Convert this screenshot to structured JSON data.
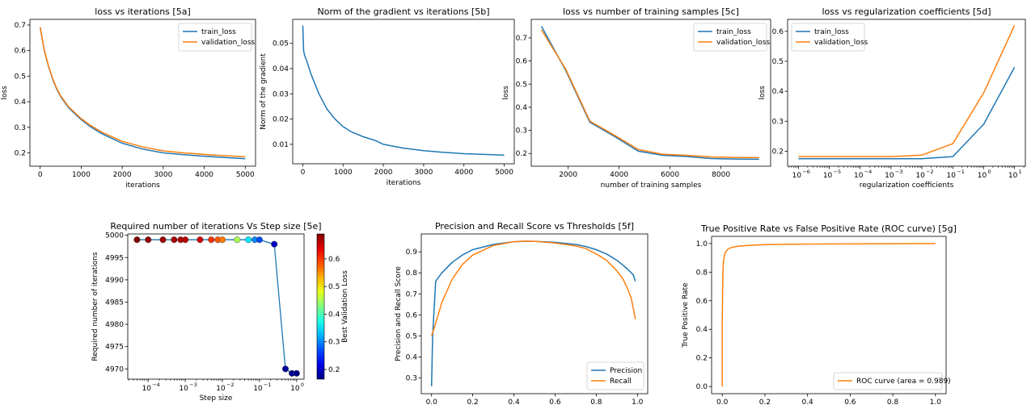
{
  "chart_data": [
    {
      "id": "5a",
      "type": "line",
      "title": "loss vs iterations [5a]",
      "xlabel": "iterations",
      "ylabel": "loss",
      "xlim": [
        -250,
        5250
      ],
      "ylim": [
        0.148,
        0.722
      ],
      "xticks": [
        0,
        1000,
        2000,
        3000,
        4000,
        5000
      ],
      "xticklabels": [
        "0",
        "1000",
        "2000",
        "3000",
        "4000",
        "5000"
      ],
      "yticks": [
        0.2,
        0.3,
        0.4,
        0.5,
        0.6,
        0.7
      ],
      "yticklabels": [
        "0.2",
        "0.3",
        "0.4",
        "0.5",
        "0.6",
        "0.7"
      ],
      "legend": "top-right",
      "series": [
        {
          "name": "train_loss",
          "color": "#1f77b4",
          "x": [
            0,
            100,
            200,
            300,
            400,
            500,
            700,
            1000,
            1200,
            1500,
            2000,
            2500,
            3000,
            3500,
            4000,
            4500,
            5000
          ],
          "y": [
            0.69,
            0.6,
            0.54,
            0.49,
            0.45,
            0.42,
            0.375,
            0.33,
            0.305,
            0.275,
            0.238,
            0.215,
            0.2,
            0.193,
            0.187,
            0.182,
            0.177
          ]
        },
        {
          "name": "validation_loss",
          "color": "#ff7f0e",
          "x": [
            0,
            100,
            200,
            300,
            400,
            500,
            700,
            1000,
            1200,
            1500,
            2000,
            2500,
            3000,
            3500,
            4000,
            4500,
            5000
          ],
          "y": [
            0.692,
            0.602,
            0.542,
            0.493,
            0.453,
            0.423,
            0.379,
            0.334,
            0.31,
            0.281,
            0.245,
            0.223,
            0.208,
            0.2,
            0.194,
            0.189,
            0.185
          ]
        }
      ]
    },
    {
      "id": "5b",
      "type": "line",
      "title": "Norm of the gradient vs iterations [5b]",
      "xlabel": "iterations",
      "ylabel": "Norm of the gradient",
      "xlim": [
        -250,
        5250
      ],
      "ylim": [
        0.0023,
        0.0595
      ],
      "xticks": [
        0,
        1000,
        2000,
        3000,
        4000,
        5000
      ],
      "xticklabels": [
        "0",
        "1000",
        "2000",
        "3000",
        "4000",
        "5000"
      ],
      "yticks": [
        0.01,
        0.02,
        0.03,
        0.04,
        0.05
      ],
      "yticklabels": [
        "0.01",
        "0.02",
        "0.03",
        "0.04",
        "0.05"
      ],
      "series": [
        {
          "color": "#1f77b4",
          "x": [
            0,
            20,
            50,
            100,
            200,
            300,
            400,
            500,
            600,
            800,
            1000,
            1200,
            1500,
            1800,
            2000,
            2500,
            3000,
            3500,
            4000,
            4500,
            5000
          ],
          "y": [
            0.057,
            0.047,
            0.045,
            0.043,
            0.038,
            0.034,
            0.03,
            0.027,
            0.024,
            0.02,
            0.017,
            0.015,
            0.013,
            0.0115,
            0.01,
            0.0085,
            0.0075,
            0.0068,
            0.0063,
            0.006,
            0.0057
          ]
        }
      ]
    },
    {
      "id": "5c",
      "type": "line",
      "title": "loss vs number of training samples [5c]",
      "xlabel": "number of training samples",
      "ylabel": "loss",
      "xlim": [
        550,
        9950
      ],
      "ylim": [
        0.145,
        0.78
      ],
      "xticks": [
        2000,
        4000,
        6000,
        8000
      ],
      "xticklabels": [
        "2000",
        "4000",
        "6000",
        "8000"
      ],
      "yticks": [
        0.2,
        0.3,
        0.4,
        0.5,
        0.6,
        0.7
      ],
      "yticklabels": [
        "0.2",
        "0.3",
        "0.4",
        "0.5",
        "0.6",
        "0.7"
      ],
      "legend": "top-right",
      "series": [
        {
          "name": "train_loss",
          "color": "#1f77b4",
          "x": [
            950,
            1900,
            2850,
            3800,
            4750,
            5700,
            6650,
            7600,
            8550,
            9500
          ],
          "y": [
            0.75,
            0.56,
            0.335,
            0.275,
            0.21,
            0.192,
            0.187,
            0.178,
            0.176,
            0.175
          ]
        },
        {
          "name": "validation_loss",
          "color": "#ff7f0e",
          "x": [
            950,
            1900,
            2850,
            3800,
            4750,
            5700,
            6650,
            7600,
            8550,
            9500
          ],
          "y": [
            0.735,
            0.565,
            0.34,
            0.28,
            0.217,
            0.197,
            0.192,
            0.185,
            0.183,
            0.182
          ]
        }
      ]
    },
    {
      "id": "5d",
      "type": "line",
      "title": "loss vs regularization coefficients [5d]",
      "xlabel": "regularization coefficients",
      "ylabel": "loss",
      "xscale": "log",
      "xlim_exp": [
        -6.35,
        1.35
      ],
      "ylim": [
        0.15,
        0.64
      ],
      "xticks_exp": [
        -6,
        -5,
        -4,
        -3,
        -2,
        -1,
        0,
        1
      ],
      "xticklabels": [
        "10",
        "10",
        "10",
        "10",
        "10",
        "10",
        "10",
        "10"
      ],
      "xtick_exponents": [
        "−6",
        "−5",
        "−4",
        "−3",
        "−2",
        "−1",
        "0",
        "1"
      ],
      "yticks": [
        0.2,
        0.3,
        0.4,
        0.5,
        0.6
      ],
      "yticklabels": [
        "0.2",
        "0.3",
        "0.4",
        "0.5",
        "0.6"
      ],
      "legend": "top-left",
      "series": [
        {
          "name": "train_loss",
          "color": "#1f77b4",
          "x": [
            1e-06,
            1e-05,
            0.0001,
            0.001,
            0.01,
            0.1,
            1,
            10
          ],
          "y": [
            0.175,
            0.175,
            0.175,
            0.175,
            0.175,
            0.182,
            0.29,
            0.48
          ]
        },
        {
          "name": "validation_loss",
          "color": "#ff7f0e",
          "x": [
            1e-06,
            1e-05,
            0.0001,
            0.001,
            0.01,
            0.1,
            1,
            10
          ],
          "y": [
            0.182,
            0.182,
            0.182,
            0.182,
            0.187,
            0.225,
            0.395,
            0.62
          ]
        }
      ]
    },
    {
      "id": "5e",
      "type": "scatter",
      "title": "Required number of iterations Vs Step size [5e]",
      "xlabel": "Step size",
      "ylabel": "Required number of iterations",
      "xscale": "log",
      "xlim_exp": [
        -4.55,
        0.2
      ],
      "ylim": [
        4967.7,
        5000.3
      ],
      "xticks_exp": [
        -4,
        -3,
        -2,
        -1,
        0
      ],
      "xticklabels": [
        "10",
        "10",
        "10",
        "10",
        "10"
      ],
      "xtick_exponents": [
        "−4",
        "−3",
        "−2",
        "−1",
        "0"
      ],
      "yticks": [
        4970,
        4975,
        4980,
        4985,
        4990,
        4995,
        5000
      ],
      "yticklabels": [
        "4970",
        "4975",
        "4980",
        "4985",
        "4990",
        "4995",
        "5000"
      ],
      "line_color": "#1f77b4",
      "colorbar": {
        "label": "Best Validation Loss",
        "range": [
          0.165,
          0.69
        ],
        "ticks": [
          0.2,
          0.3,
          0.4,
          0.5,
          0.6
        ],
        "ticklabels": [
          "0.2",
          "0.3",
          "0.4",
          "0.5",
          "0.6"
        ]
      },
      "points": [
        {
          "x": 5e-05,
          "y": 4999,
          "c": 0.69
        },
        {
          "x": 0.0001,
          "y": 4999,
          "c": 0.68
        },
        {
          "x": 0.00025,
          "y": 4999,
          "c": 0.675
        },
        {
          "x": 0.0005,
          "y": 4999,
          "c": 0.67
        },
        {
          "x": 0.00075,
          "y": 4999,
          "c": 0.665
        },
        {
          "x": 0.001,
          "y": 4999,
          "c": 0.66
        },
        {
          "x": 0.0025,
          "y": 4999,
          "c": 0.65
        },
        {
          "x": 0.005,
          "y": 4999,
          "c": 0.6
        },
        {
          "x": 0.0075,
          "y": 4999,
          "c": 0.58
        },
        {
          "x": 0.01,
          "y": 4999,
          "c": 0.56
        },
        {
          "x": 0.025,
          "y": 4999,
          "c": 0.45
        },
        {
          "x": 0.05,
          "y": 4999,
          "c": 0.35
        },
        {
          "x": 0.075,
          "y": 4999,
          "c": 0.3
        },
        {
          "x": 0.1,
          "y": 4999,
          "c": 0.27
        },
        {
          "x": 0.25,
          "y": 4998,
          "c": 0.2
        },
        {
          "x": 0.5,
          "y": 4970,
          "c": 0.18
        },
        {
          "x": 0.75,
          "y": 4969,
          "c": 0.175
        },
        {
          "x": 1.0,
          "y": 4969,
          "c": 0.17
        }
      ]
    },
    {
      "id": "5f",
      "type": "line",
      "title": "Precision and Recall Score vs Thresholds [5f]",
      "xlabel": "Thresholds",
      "ylabel": "Precision and Recall Score",
      "xlim": [
        -0.05,
        1.05
      ],
      "ylim": [
        0.225,
        0.985
      ],
      "xticks": [
        0.0,
        0.2,
        0.4,
        0.6,
        0.8,
        1.0
      ],
      "xticklabels": [
        "0.0",
        "0.2",
        "0.4",
        "0.6",
        "0.8",
        "1.0"
      ],
      "yticks": [
        0.3,
        0.4,
        0.5,
        0.6,
        0.7,
        0.8,
        0.9
      ],
      "yticklabels": [
        "0.3",
        "0.4",
        "0.5",
        "0.6",
        "0.7",
        "0.8",
        "0.9"
      ],
      "legend": "bottom-right",
      "series": [
        {
          "name": "Precision",
          "color": "#1f77b4",
          "x": [
            0.0,
            0.005,
            0.02,
            0.05,
            0.1,
            0.15,
            0.2,
            0.3,
            0.4,
            0.45,
            0.5,
            0.6,
            0.7,
            0.75,
            0.8,
            0.85,
            0.9,
            0.95,
            0.98,
            0.99
          ],
          "y": [
            0.26,
            0.5,
            0.76,
            0.8,
            0.85,
            0.885,
            0.91,
            0.935,
            0.948,
            0.95,
            0.95,
            0.945,
            0.935,
            0.925,
            0.91,
            0.89,
            0.86,
            0.82,
            0.79,
            0.76
          ]
        },
        {
          "name": "Recall",
          "color": "#ff7f0e",
          "x": [
            0.0,
            0.02,
            0.05,
            0.1,
            0.15,
            0.2,
            0.3,
            0.4,
            0.45,
            0.5,
            0.6,
            0.7,
            0.75,
            0.8,
            0.85,
            0.9,
            0.93,
            0.95,
            0.97,
            0.98,
            0.99
          ],
          "y": [
            0.5,
            0.56,
            0.66,
            0.77,
            0.84,
            0.885,
            0.93,
            0.948,
            0.951,
            0.95,
            0.942,
            0.928,
            0.915,
            0.89,
            0.86,
            0.81,
            0.77,
            0.73,
            0.68,
            0.63,
            0.58
          ]
        }
      ]
    },
    {
      "id": "5g",
      "type": "line",
      "title": "True Positive Rate vs False Positive Rate (ROC curve) [5g]",
      "xlabel": "False Positive Rate",
      "ylabel": "True Positive Rate",
      "xlim": [
        -0.05,
        1.05
      ],
      "ylim": [
        -0.05,
        1.05
      ],
      "xticks": [
        0.0,
        0.2,
        0.4,
        0.6,
        0.8,
        1.0
      ],
      "xticklabels": [
        "0.0",
        "0.2",
        "0.4",
        "0.6",
        "0.8",
        "1.0"
      ],
      "yticks": [
        0.0,
        0.2,
        0.4,
        0.6,
        0.8,
        1.0
      ],
      "yticklabels": [
        "0.0",
        "0.2",
        "0.4",
        "0.6",
        "0.8",
        "1.0"
      ],
      "legend": "bottom-right",
      "series": [
        {
          "name": "ROC curve (area = 0.989)",
          "color": "#ff7f0e",
          "x": [
            0,
            0,
            0.002,
            0.003,
            0.005,
            0.008,
            0.012,
            0.02,
            0.03,
            0.05,
            0.08,
            0.12,
            0.2,
            0.3,
            0.5,
            0.7,
            0.9,
            1.0
          ],
          "y": [
            0,
            0.45,
            0.7,
            0.8,
            0.86,
            0.9,
            0.93,
            0.95,
            0.965,
            0.975,
            0.982,
            0.987,
            0.992,
            0.995,
            0.997,
            0.998,
            0.999,
            1.0
          ]
        }
      ]
    }
  ]
}
